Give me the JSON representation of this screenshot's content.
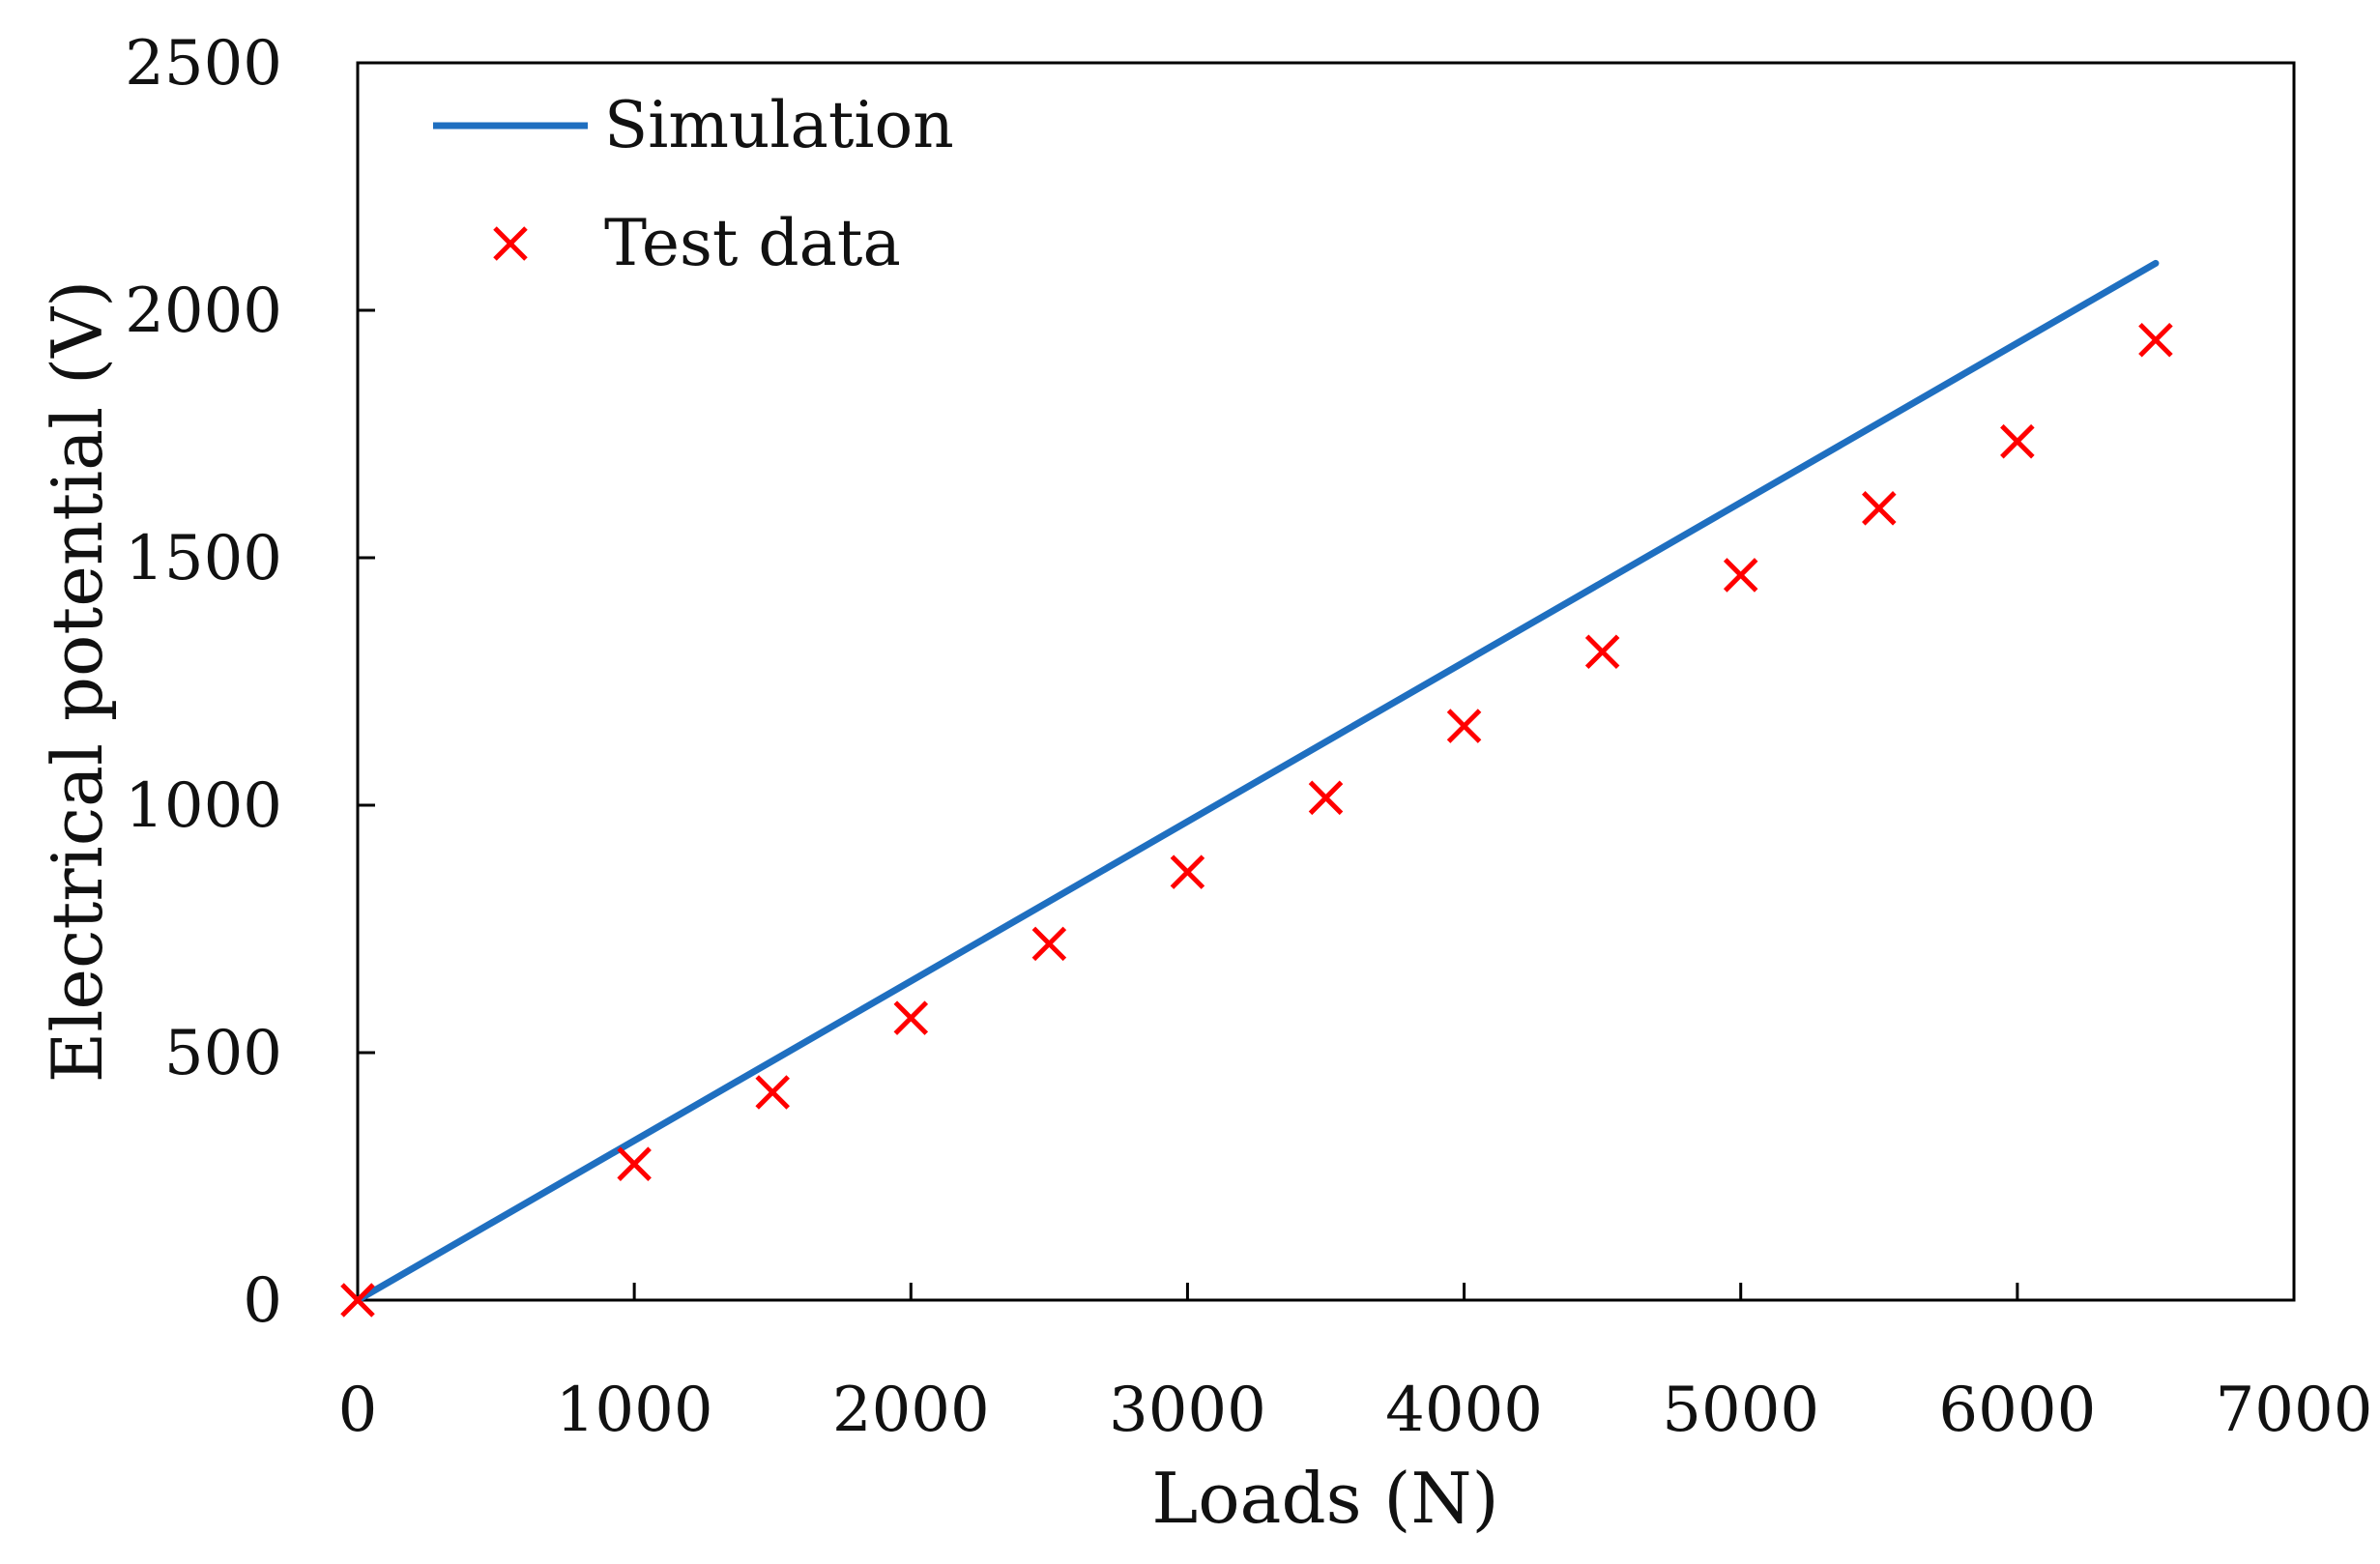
{
  "chart_data": {
    "type": "line",
    "title": "",
    "xlabel": "Loads (N)",
    "ylabel": "Electrical potential (V)",
    "xlim": [
      0,
      7000
    ],
    "ylim": [
      0,
      2500
    ],
    "x_ticks": [
      0,
      1000,
      2000,
      3000,
      4000,
      5000,
      6000,
      7000
    ],
    "y_ticks": [
      0,
      500,
      1000,
      1500,
      2000,
      2500
    ],
    "x_tick_labels": [
      "0",
      "1000",
      "2000",
      "3000",
      "4000",
      "5000",
      "6000",
      "7000"
    ],
    "y_tick_labels": [
      "0",
      "500",
      "1000",
      "1500",
      "2000",
      "2500"
    ],
    "grid": false,
    "legend_position": "top-left",
    "series": [
      {
        "name": "Simulation",
        "kind": "line",
        "color": "#1f6fc0",
        "x": [
          0,
          6500
        ],
        "y": [
          0,
          2095
        ]
      },
      {
        "name": "Test data",
        "kind": "scatter",
        "marker": "x",
        "color": "#ff0000",
        "x": [
          0,
          1000,
          1500,
          2000,
          2500,
          3000,
          3500,
          4000,
          4500,
          5000,
          5500,
          6000,
          6500
        ],
        "y": [
          0,
          275,
          420,
          570,
          720,
          865,
          1015,
          1160,
          1310,
          1465,
          1600,
          1735,
          1940
        ]
      }
    ]
  }
}
